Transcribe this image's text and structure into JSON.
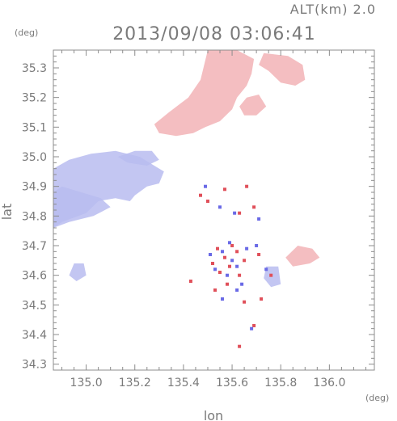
{
  "altitude_label": "ALT(km)  2.0",
  "timestamp": "2013/09/08 03:06:41",
  "colors": {
    "frame": "#8c8c8c",
    "tick_text": "#7a7a7a",
    "positive_velocity": "#f2b3b6",
    "negative_velocity": "#b9bcf0",
    "strong_positive": "#e0505a",
    "strong_negative": "#6a6ae6"
  },
  "chart_data": {
    "type": "heatmap",
    "title": "2013/09/08 03:06:41",
    "subtitle": "ALT(km)  2.0",
    "xlabel": "lon",
    "ylabel": "lat",
    "x_unit": "(deg)",
    "y_unit": "(deg)",
    "xlim": [
      134.865,
      136.185
    ],
    "ylim": [
      34.28,
      35.36
    ],
    "xticks": [
      135.0,
      135.2,
      135.4,
      135.6,
      135.8,
      136.0
    ],
    "xtick_labels": [
      "135.0",
      "135.2",
      "135.4",
      "135.6",
      "135.8",
      "136.0"
    ],
    "yticks": [
      34.3,
      34.4,
      34.5,
      34.6,
      34.7,
      34.8,
      34.9,
      35.0,
      35.1,
      35.2,
      35.3
    ],
    "ytick_labels": [
      "34.3",
      "34.4",
      "34.5",
      "34.6",
      "34.7",
      "34.8",
      "34.9",
      "35.0",
      "35.1",
      "35.2",
      "35.3"
    ],
    "grid": false,
    "regions": [
      {
        "sign": "negative",
        "points": [
          [
            134.865,
            34.96
          ],
          [
            134.93,
            34.99
          ],
          [
            135.02,
            35.01
          ],
          [
            135.12,
            35.02
          ],
          [
            135.22,
            35.0
          ],
          [
            135.28,
            34.97
          ],
          [
            135.32,
            34.95
          ],
          [
            135.3,
            34.91
          ],
          [
            135.25,
            34.9
          ],
          [
            135.2,
            34.87
          ],
          [
            135.18,
            34.85
          ],
          [
            135.12,
            34.86
          ],
          [
            135.05,
            34.85
          ],
          [
            135.0,
            34.81
          ],
          [
            134.9,
            34.78
          ],
          [
            134.865,
            34.76
          ]
        ]
      },
      {
        "sign": "negative",
        "points": [
          [
            134.865,
            34.76
          ],
          [
            134.93,
            34.78
          ],
          [
            135.03,
            34.8
          ],
          [
            135.1,
            34.83
          ],
          [
            135.06,
            34.86
          ],
          [
            134.98,
            34.88
          ],
          [
            134.9,
            34.9
          ],
          [
            134.865,
            34.88
          ]
        ]
      },
      {
        "sign": "positive",
        "points": [
          [
            135.5,
            35.36
          ],
          [
            135.62,
            35.36
          ],
          [
            135.69,
            35.33
          ],
          [
            135.68,
            35.28
          ],
          [
            135.66,
            35.24
          ],
          [
            135.62,
            35.2
          ],
          [
            135.6,
            35.16
          ],
          [
            135.55,
            35.12
          ],
          [
            135.49,
            35.1
          ],
          [
            135.44,
            35.08
          ],
          [
            135.37,
            35.07
          ],
          [
            135.3,
            35.08
          ],
          [
            135.28,
            35.11
          ],
          [
            135.34,
            35.15
          ],
          [
            135.42,
            35.2
          ],
          [
            135.47,
            35.26
          ]
        ]
      },
      {
        "sign": "positive",
        "points": [
          [
            135.73,
            35.35
          ],
          [
            135.83,
            35.34
          ],
          [
            135.89,
            35.31
          ],
          [
            135.9,
            35.26
          ],
          [
            135.86,
            35.24
          ],
          [
            135.8,
            35.25
          ],
          [
            135.75,
            35.29
          ],
          [
            135.71,
            35.31
          ]
        ]
      },
      {
        "sign": "positive",
        "points": [
          [
            135.66,
            35.2
          ],
          [
            135.71,
            35.21
          ],
          [
            135.74,
            35.17
          ],
          [
            135.7,
            35.14
          ],
          [
            135.65,
            35.14
          ],
          [
            135.63,
            35.17
          ]
        ]
      },
      {
        "sign": "negative",
        "points": [
          [
            135.13,
            35.0
          ],
          [
            135.2,
            35.02
          ],
          [
            135.27,
            35.02
          ],
          [
            135.3,
            34.99
          ],
          [
            135.25,
            34.97
          ],
          [
            135.17,
            34.98
          ]
        ]
      },
      {
        "sign": "positive",
        "points": [
          [
            135.87,
            34.7
          ],
          [
            135.93,
            34.69
          ],
          [
            135.96,
            34.66
          ],
          [
            135.92,
            34.64
          ],
          [
            135.85,
            34.63
          ],
          [
            135.82,
            34.66
          ]
        ]
      },
      {
        "sign": "negative",
        "points": [
          [
            134.95,
            34.64
          ],
          [
            134.99,
            34.64
          ],
          [
            135.0,
            34.6
          ],
          [
            134.96,
            34.58
          ],
          [
            134.93,
            34.6
          ]
        ]
      },
      {
        "sign": "negative",
        "points": [
          [
            135.74,
            34.63
          ],
          [
            135.79,
            34.63
          ],
          [
            135.8,
            34.57
          ],
          [
            135.76,
            34.56
          ],
          [
            135.73,
            34.59
          ]
        ]
      }
    ],
    "scatter_positive": [
      [
        135.54,
        34.69
      ],
      [
        135.57,
        34.66
      ],
      [
        135.59,
        34.63
      ],
      [
        135.55,
        34.61
      ],
      [
        135.62,
        34.68
      ],
      [
        135.65,
        34.65
      ],
      [
        135.6,
        34.7
      ],
      [
        135.52,
        34.64
      ],
      [
        135.58,
        34.57
      ],
      [
        135.63,
        34.6
      ],
      [
        135.5,
        34.85
      ],
      [
        135.63,
        34.81
      ],
      [
        135.69,
        34.83
      ],
      [
        135.57,
        34.89
      ],
      [
        135.66,
        34.9
      ],
      [
        135.76,
        34.6
      ],
      [
        135.72,
        34.52
      ],
      [
        135.69,
        34.43
      ],
      [
        135.63,
        34.36
      ],
      [
        135.47,
        34.87
      ],
      [
        135.71,
        34.67
      ],
      [
        135.53,
        34.55
      ],
      [
        135.65,
        34.51
      ],
      [
        135.43,
        34.58
      ]
    ],
    "scatter_negative": [
      [
        135.56,
        34.68
      ],
      [
        135.6,
        34.65
      ],
      [
        135.53,
        34.62
      ],
      [
        135.62,
        34.63
      ],
      [
        135.58,
        34.6
      ],
      [
        135.66,
        34.69
      ],
      [
        135.51,
        34.67
      ],
      [
        135.59,
        34.71
      ],
      [
        135.64,
        34.57
      ],
      [
        135.61,
        34.81
      ],
      [
        135.55,
        34.83
      ],
      [
        135.71,
        34.79
      ],
      [
        135.49,
        34.9
      ],
      [
        135.7,
        34.7
      ],
      [
        135.74,
        34.62
      ],
      [
        135.68,
        34.42
      ],
      [
        135.56,
        34.52
      ],
      [
        135.62,
        34.55
      ]
    ]
  }
}
